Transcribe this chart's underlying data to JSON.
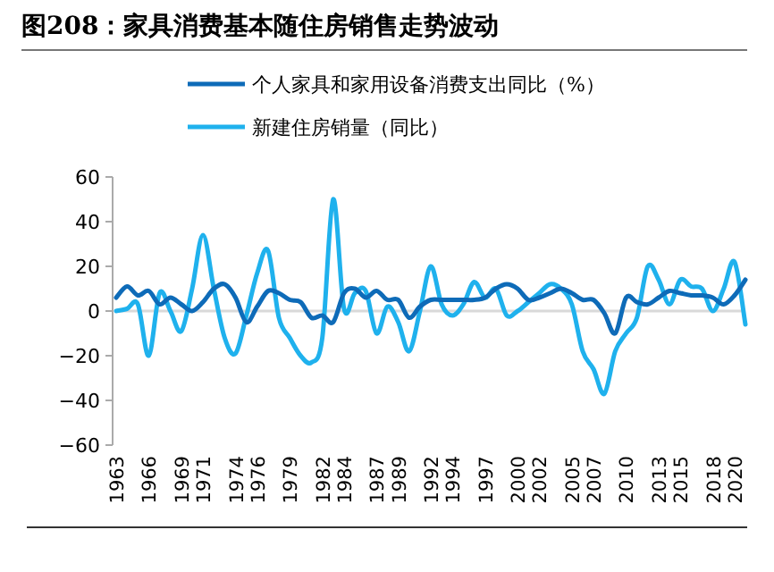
{
  "chart_data": {
    "type": "line",
    "title": "图208：家具消费基本随住房销售走势波动",
    "categories": [
      "1963",
      null,
      null,
      "1966",
      null,
      null,
      "1969",
      null,
      "1971",
      null,
      null,
      "1974",
      null,
      "1976",
      null,
      null,
      "1979",
      null,
      null,
      "1982",
      null,
      "1984",
      null,
      null,
      "1987",
      null,
      "1989",
      null,
      null,
      "1992",
      null,
      "1994",
      null,
      null,
      "1997",
      null,
      null,
      "2000",
      null,
      "2002",
      null,
      null,
      "2005",
      null,
      "2007",
      null,
      null,
      "2010",
      null,
      null,
      "2013",
      null,
      "2015",
      null,
      null,
      "2018",
      null,
      "2020",
      null
    ],
    "series": [
      {
        "name": "个人家具和家用设备消费支出同比（%）",
        "color": "#0e6bb8",
        "values": [
          6,
          11,
          7,
          9,
          3,
          6,
          3,
          0,
          4,
          10,
          12,
          6,
          -5,
          2,
          9,
          8,
          5,
          4,
          -3,
          -2,
          -5,
          8,
          10,
          6,
          9,
          5,
          5,
          -3,
          2,
          5,
          5,
          5,
          5,
          5,
          6,
          10,
          12,
          10,
          5,
          6,
          8,
          10,
          8,
          5,
          5,
          -1,
          -10,
          6,
          4,
          3,
          6,
          9,
          8,
          7,
          7,
          6,
          3,
          7,
          14
        ]
      },
      {
        "name": "新建住房销量（同比）",
        "color": "#1fb1ed",
        "values": [
          0,
          1,
          3,
          -20,
          8,
          0,
          -9,
          10,
          34,
          10,
          -12,
          -19,
          -2,
          17,
          27,
          -3,
          -12,
          -20,
          -23,
          -12,
          50,
          1,
          8,
          9,
          -10,
          2,
          -5,
          -18,
          0,
          20,
          3,
          -2,
          3,
          13,
          6,
          10,
          -2,
          0,
          4,
          8,
          12,
          10,
          3,
          -18,
          -26,
          -37,
          -18,
          -10,
          -3,
          20,
          14,
          3,
          14,
          11,
          10,
          0,
          10,
          22,
          -6
        ]
      }
    ],
    "ylim": [
      -60,
      60
    ],
    "yticks": [
      -60,
      -40,
      -20,
      0,
      20,
      40,
      60
    ],
    "ref_lines": [
      {
        "axis": "y",
        "value": 0,
        "color": "#d9d9d9"
      }
    ],
    "legend": "top",
    "grid": false,
    "marker": "none",
    "line_style": "solid"
  }
}
